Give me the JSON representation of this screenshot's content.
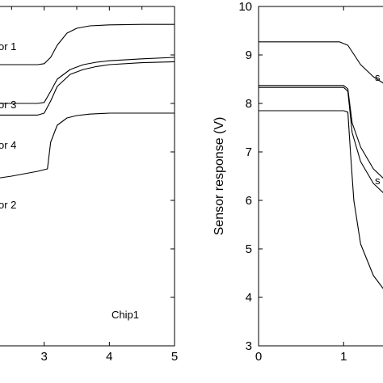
{
  "chart_data": [
    {
      "type": "line",
      "panel": "left",
      "xlim": [
        2,
        5
      ],
      "ylim": [
        3,
        10
      ],
      "x_ticks": [
        "3",
        "4",
        "5"
      ],
      "annotation": "Chip1",
      "series": [
        {
          "name": "or 1",
          "x": [
            2.0,
            2.6,
            2.9,
            3.0,
            3.1,
            3.2,
            3.35,
            3.5,
            3.7,
            4.0,
            4.5,
            5.0
          ],
          "y": [
            8.8,
            8.8,
            8.8,
            8.82,
            8.95,
            9.2,
            9.45,
            9.55,
            9.6,
            9.62,
            9.63,
            9.63
          ]
        },
        {
          "name": "or 3",
          "x": [
            2.0,
            2.6,
            2.9,
            3.0,
            3.1,
            3.2,
            3.4,
            3.6,
            3.8,
            4.0,
            4.5,
            5.0
          ],
          "y": [
            8.0,
            8.0,
            8.0,
            8.02,
            8.25,
            8.5,
            8.7,
            8.8,
            8.85,
            8.88,
            8.92,
            8.95
          ]
        },
        {
          "name": "or 4",
          "x": [
            2.0,
            2.6,
            2.9,
            3.0,
            3.1,
            3.2,
            3.4,
            3.6,
            3.8,
            4.0,
            4.5,
            5.0
          ],
          "y": [
            7.76,
            7.76,
            7.76,
            7.8,
            8.05,
            8.35,
            8.6,
            8.7,
            8.76,
            8.8,
            8.84,
            8.86
          ]
        },
        {
          "name": "or 2",
          "x": [
            2.0,
            2.5,
            2.9,
            3.05,
            3.1,
            3.2,
            3.35,
            3.5,
            3.7,
            4.0,
            4.5,
            5.0
          ],
          "y": [
            6.4,
            6.5,
            6.6,
            6.65,
            7.2,
            7.55,
            7.7,
            7.75,
            7.78,
            7.8,
            7.8,
            7.8
          ]
        }
      ]
    },
    {
      "type": "line",
      "panel": "right",
      "xlim": [
        0,
        1.9
      ],
      "ylim": [
        3,
        10
      ],
      "x_ticks": [
        "0",
        "1"
      ],
      "y_ticks": [
        "3",
        "4",
        "5",
        "6",
        "7",
        "8",
        "9",
        "10"
      ],
      "ylabel": "Sensor response (V)",
      "series": [
        {
          "name": "s",
          "x": [
            0,
            0.5,
            0.95,
            1.05,
            1.2,
            1.35,
            1.5,
            1.7,
            1.9
          ],
          "y": [
            9.27,
            9.27,
            9.27,
            9.2,
            8.8,
            8.55,
            8.38,
            8.3,
            8.27
          ]
        },
        {
          "x": [
            0,
            0.5,
            1.0,
            1.05,
            1.1,
            1.2,
            1.35,
            1.5,
            1.7,
            1.9
          ],
          "y": [
            8.37,
            8.37,
            8.37,
            8.3,
            7.6,
            7.1,
            6.65,
            6.4,
            6.2,
            6.1
          ]
        },
        {
          "name": "s",
          "x": [
            0,
            0.5,
            1.0,
            1.05,
            1.1,
            1.2,
            1.35,
            1.5,
            1.7,
            1.9
          ],
          "y": [
            8.33,
            8.33,
            8.33,
            8.25,
            7.4,
            6.8,
            6.35,
            6.1,
            5.85,
            5.75
          ]
        },
        {
          "x": [
            0,
            0.5,
            1.0,
            1.05,
            1.08,
            1.12,
            1.2,
            1.35,
            1.5,
            1.7,
            1.9
          ],
          "y": [
            7.85,
            7.85,
            7.85,
            7.82,
            7.0,
            6.0,
            5.1,
            4.45,
            4.1,
            3.9,
            3.78
          ]
        }
      ]
    }
  ]
}
